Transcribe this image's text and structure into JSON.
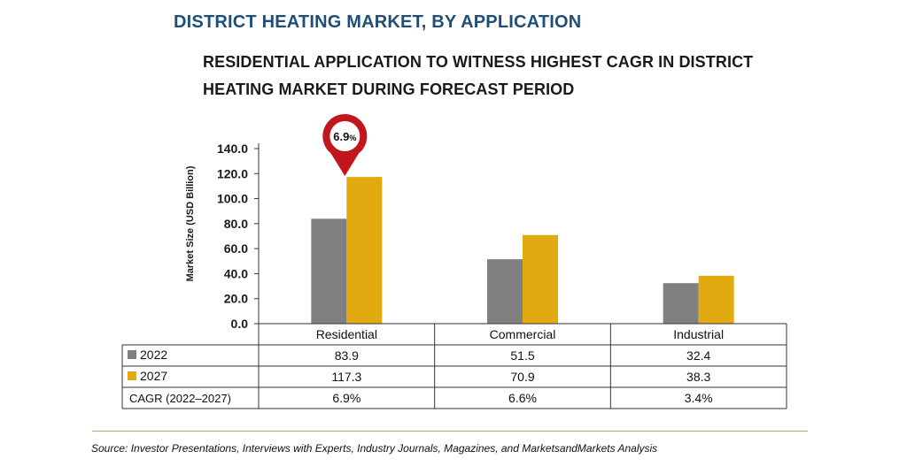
{
  "header": {
    "title": "DISTRICT HEATING MARKET, BY APPLICATION",
    "subtitle": "RESIDENTIAL APPLICATION TO WITNESS HIGHEST CAGR IN DISTRICT HEATING MARKET DURING FORECAST PERIOD"
  },
  "chart_data": {
    "type": "bar",
    "ylabel": "Market Size (USD Billion)",
    "ylim": [
      0,
      140
    ],
    "yticks": [
      "0.0",
      "20.0",
      "40.0",
      "60.0",
      "80.0",
      "100.0",
      "120.0",
      "140.0"
    ],
    "categories": [
      "Residential",
      "Commercial",
      "Industrial"
    ],
    "series": [
      {
        "name": "2022",
        "values": [
          83.9,
          51.5,
          32.4
        ],
        "labels": [
          "83.9",
          "51.5",
          "32.4"
        ],
        "color": "#808080"
      },
      {
        "name": "2027",
        "values": [
          117.3,
          70.9,
          38.3
        ],
        "labels": [
          "117.3",
          "70.9",
          "38.3"
        ],
        "color": "#e0aa10"
      }
    ],
    "cagr_row": {
      "label": "CAGR (2022–2027)",
      "values": [
        "6.9%",
        "6.6%",
        "3.4%"
      ]
    },
    "callout": {
      "category": "Residential",
      "value": "6.9",
      "unit": "%",
      "color": "#c0161c"
    },
    "grid": false,
    "legend": "table rows"
  },
  "footer": {
    "source": "Source: Investor Presentations, Interviews with Experts, Industry Journals, Magazines, and MarketsandMarkets Analysis"
  }
}
